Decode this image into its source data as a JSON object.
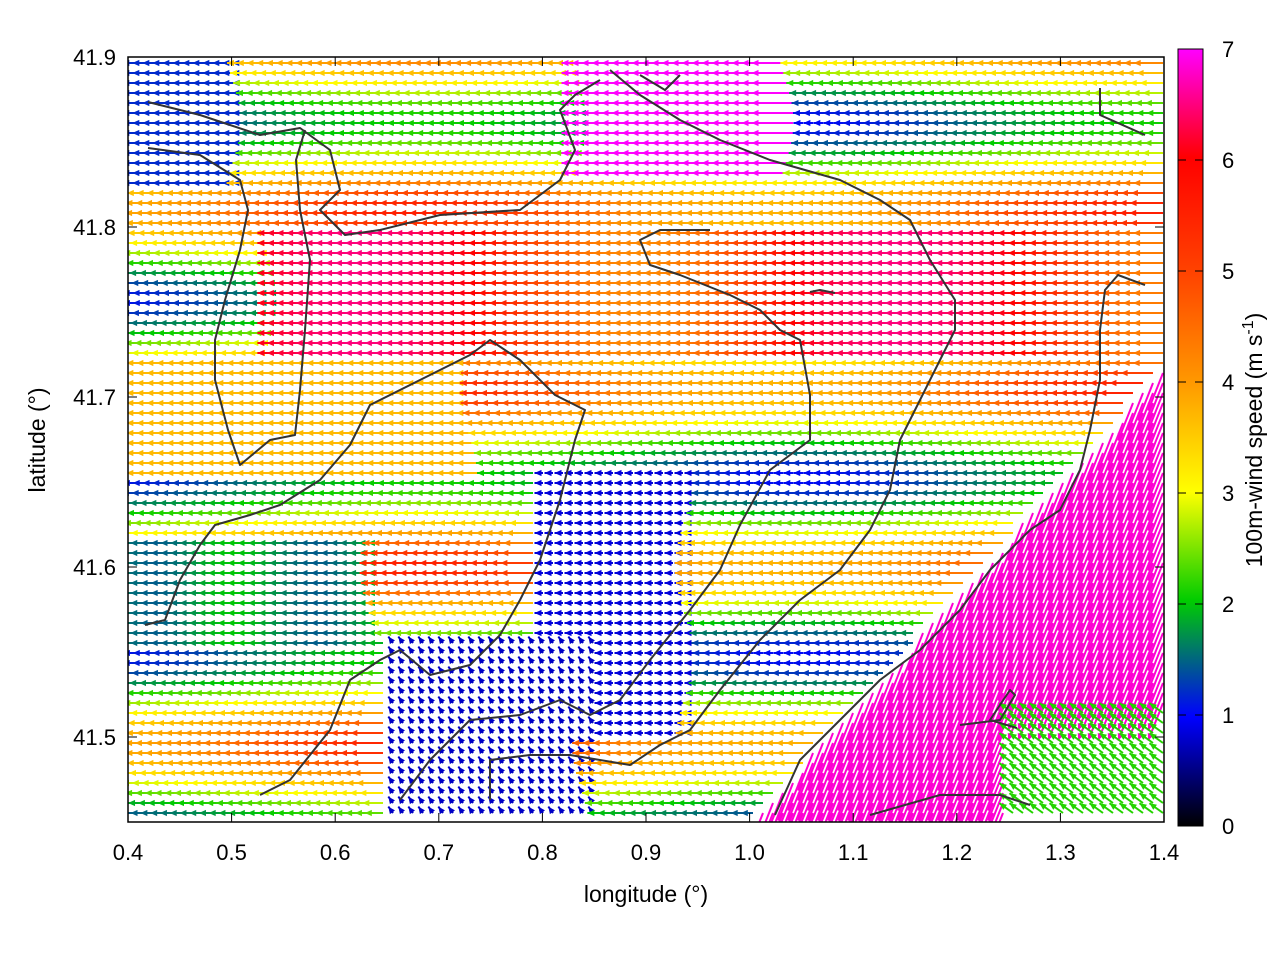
{
  "chart_data": {
    "type": "vector-field",
    "xlabel": "longitude (°)",
    "ylabel": "latitude (°)",
    "xlim": [
      0.4,
      1.4
    ],
    "ylim": [
      41.45,
      41.9
    ],
    "xticks": [
      "0.4",
      "0.5",
      "0.6",
      "0.7",
      "0.8",
      "0.9",
      "1.0",
      "1.1",
      "1.2",
      "1.3",
      "1.4"
    ],
    "yticks": [
      "41.5",
      "41.6",
      "41.7",
      "41.8",
      "41.9"
    ],
    "colorbar": {
      "label_prefix": "100m-wind speed (m s",
      "label_exp": "-1",
      "label_suffix": ")",
      "min": 0,
      "max": 7,
      "ticks": [
        "0",
        "1",
        "2",
        "3",
        "4",
        "5",
        "6",
        "7"
      ],
      "palette": [
        "#000000",
        "#0000ff",
        "#00cc00",
        "#ffff00",
        "#ff9900",
        "#ff0000",
        "#ff00ff"
      ]
    },
    "wind_field_regions": [
      {
        "lon": [
          0.4,
          0.52
        ],
        "lat": [
          41.82,
          41.9
        ],
        "speed": 1.4,
        "direction": "from east-southeast"
      },
      {
        "lon": [
          0.55,
          1.2
        ],
        "lat": [
          41.72,
          41.8
        ],
        "speed": 5.6,
        "direction": "from east"
      },
      {
        "lon": [
          0.4,
          0.7
        ],
        "lat": [
          41.65,
          41.72
        ],
        "speed": 4.2,
        "direction": "from east"
      },
      {
        "lon": [
          0.4,
          0.65
        ],
        "lat": [
          41.55,
          41.62
        ],
        "speed": 2.0,
        "direction": "from east"
      },
      {
        "lon": [
          0.65,
          0.85
        ],
        "lat": [
          41.48,
          41.56
        ],
        "speed": 0.9,
        "direction": "variable"
      },
      {
        "lon": [
          0.8,
          0.95
        ],
        "lat": [
          41.55,
          41.65
        ],
        "speed": 1.1,
        "direction": "from east"
      },
      {
        "lon": [
          1.0,
          1.4
        ],
        "lat": [
          41.45,
          41.62
        ],
        "speed": 6.8,
        "direction": "from northwest"
      },
      {
        "lon": [
          1.2,
          1.4
        ],
        "lat": [
          41.62,
          41.78
        ],
        "speed": 7.0,
        "direction": "from northwest"
      },
      {
        "lon": [
          1.25,
          1.4
        ],
        "lat": [
          41.45,
          41.52
        ],
        "speed": 2.5,
        "direction": "from southeast"
      }
    ]
  },
  "colors": {
    "frame": "#000000",
    "contour": "#333333",
    "background": "#ffffff"
  }
}
